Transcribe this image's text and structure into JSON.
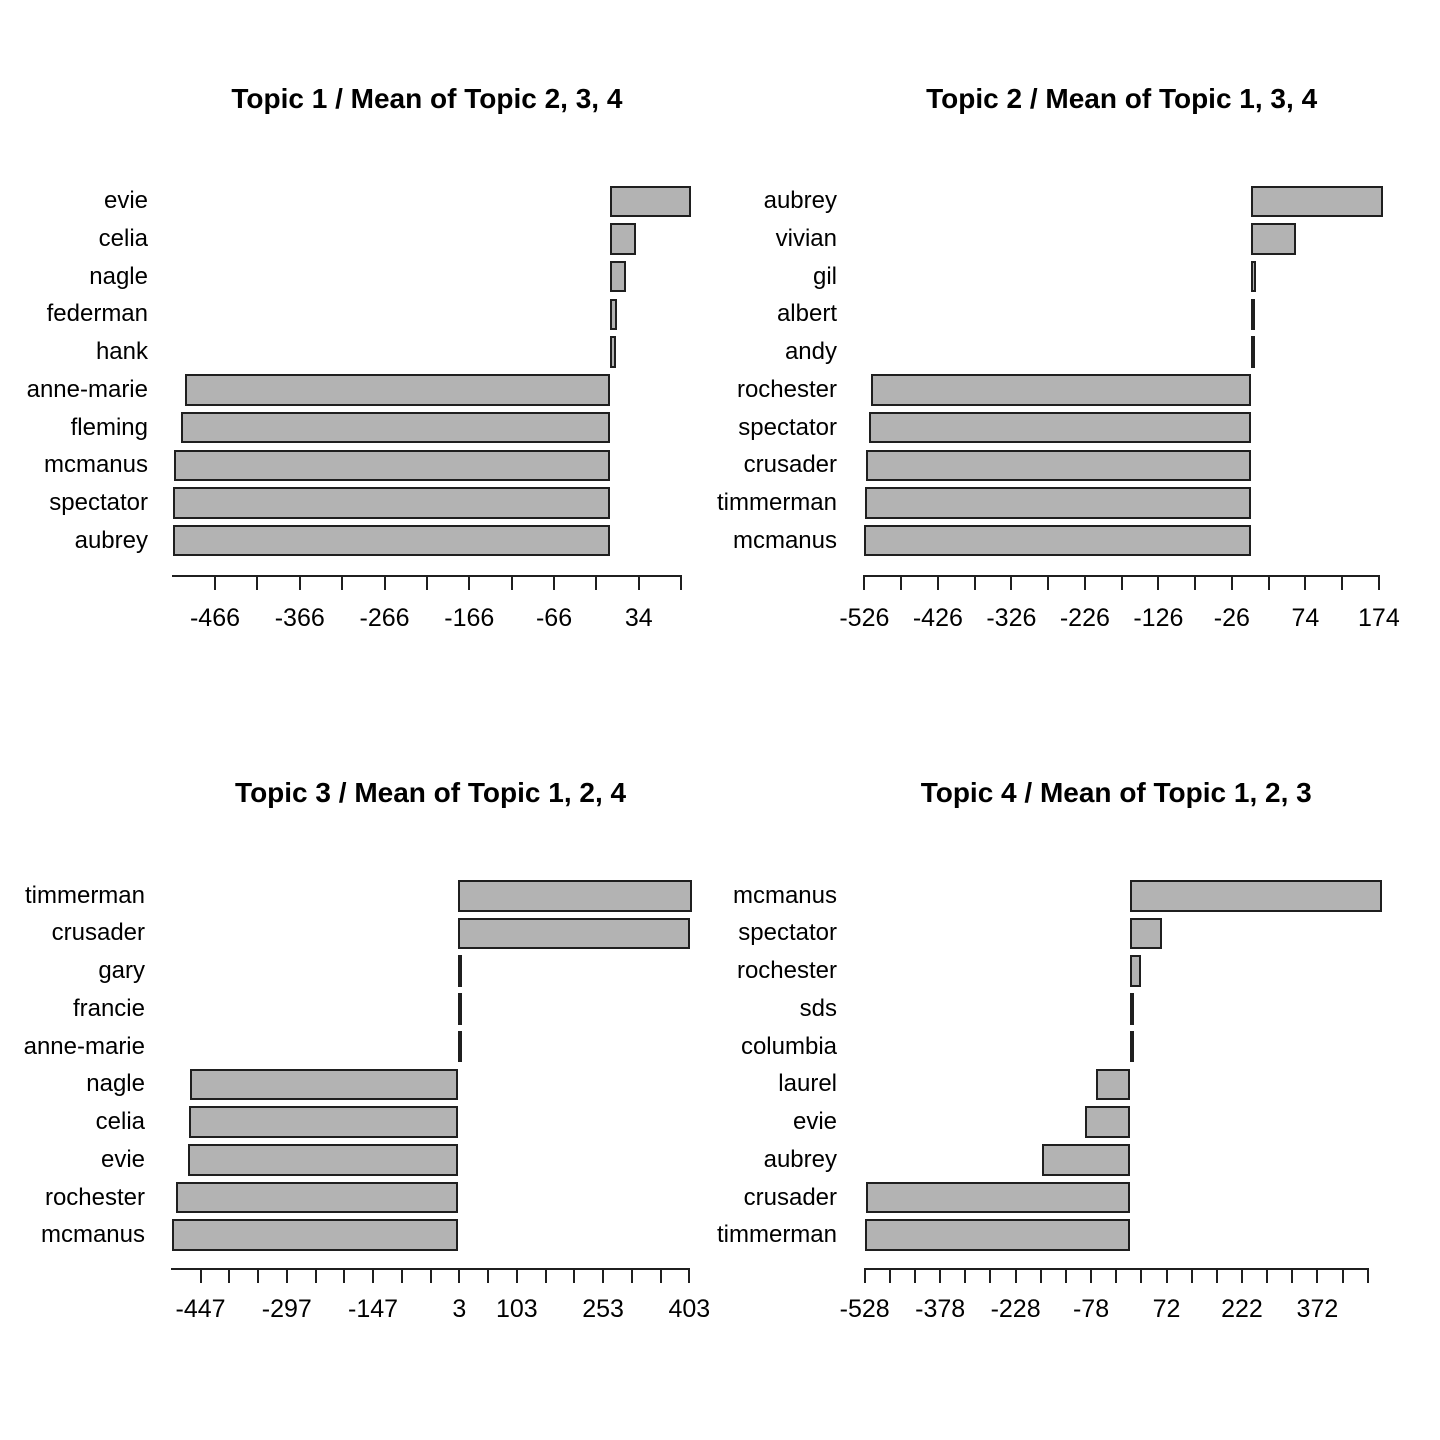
{
  "background": "#ffffff",
  "colors": {
    "bar_fill": "#b3b3b3",
    "bar_border": "#1f1f1f",
    "axis": "#1f1f1f",
    "text": "#000000"
  },
  "chart_data": [
    {
      "type": "bar",
      "orientation": "horizontal",
      "title": "Topic 1 / Mean of Topic 2, 3, 4",
      "categories": [
        "evie",
        "celia",
        "nagle",
        "federman",
        "hank",
        "anne-marie",
        "fleming",
        "mcmanus",
        "spectator",
        "aubrey"
      ],
      "values": [
        95,
        31,
        19,
        8,
        7,
        -502,
        -506,
        -514,
        -515,
        -516
      ],
      "xlim": [
        -516,
        96
      ],
      "axis_line": [
        -516,
        84
      ],
      "ticks": {
        "start": -466,
        "step": 50,
        "end": 84
      },
      "x_tick_labels": [
        "-466",
        "-366",
        "-266",
        "-166",
        "-66",
        "34"
      ],
      "grid": false,
      "legend": null
    },
    {
      "type": "bar",
      "orientation": "horizontal",
      "title": "Topic 2 / Mean of Topic 1, 3, 4",
      "categories": [
        "aubrey",
        "vivian",
        "gil",
        "albert",
        "andy",
        "rochester",
        "spectator",
        "crusader",
        "timmerman",
        "mcmanus"
      ],
      "values": [
        179,
        61,
        7,
        6,
        5,
        -517,
        -520,
        -524,
        -525,
        -526
      ],
      "xlim": [
        -526,
        182
      ],
      "axis_line": [
        -526,
        174
      ],
      "ticks": {
        "start": -526,
        "step": 50,
        "end": 174
      },
      "x_tick_labels": [
        "-526",
        "-426",
        "-326",
        "-226",
        "-126",
        "-26",
        "74",
        "174"
      ],
      "grid": false,
      "legend": null
    },
    {
      "type": "bar",
      "orientation": "horizontal",
      "title": "Topic 3 / Mean of Topic 1, 2, 4",
      "categories": [
        "timmerman",
        "crusader",
        "gary",
        "francie",
        "anne-marie",
        "nagle",
        "celia",
        "evie",
        "rochester",
        "mcmanus"
      ],
      "values": [
        407,
        405,
        8,
        7,
        6,
        -465,
        -468,
        -469,
        -490,
        -497
      ],
      "xlim": [
        -497,
        410
      ],
      "axis_line": [
        -497,
        403
      ],
      "ticks": {
        "start": -447,
        "step": 50,
        "end": 403
      },
      "x_tick_labels": [
        "-447",
        "-297",
        "-147",
        "3",
        "103",
        "253",
        "403"
      ],
      "grid": false,
      "legend": null
    },
    {
      "type": "bar",
      "orientation": "horizontal",
      "title": "Topic 4 / Mean of Topic 1, 2, 3",
      "categories": [
        "mcmanus",
        "spectator",
        "rochester",
        "sds",
        "columbia",
        "laurel",
        "evie",
        "aubrey",
        "crusader",
        "timmerman"
      ],
      "values": [
        500,
        64,
        21,
        6,
        3,
        -69,
        -91,
        -175,
        -525,
        -528
      ],
      "xlim": [
        -528,
        505
      ],
      "axis_line": [
        -528,
        472
      ],
      "ticks": {
        "start": -528,
        "step": 50,
        "end": 472
      },
      "x_tick_labels": [
        "-528",
        "-378",
        "-228",
        "-78",
        "72",
        "222",
        "372"
      ],
      "grid": false,
      "legend": null
    }
  ]
}
